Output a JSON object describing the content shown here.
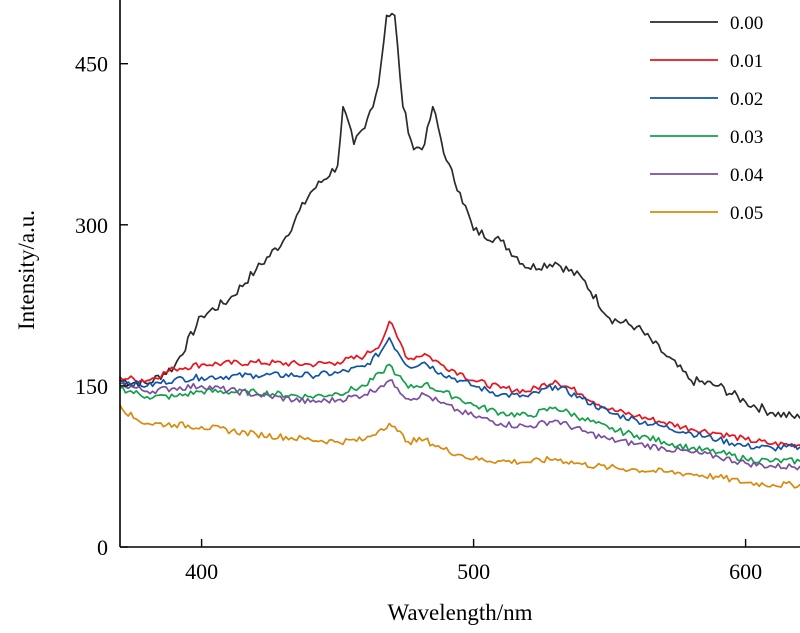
{
  "chart_data": {
    "type": "line",
    "title": "",
    "xlabel": "Wavelength/nm",
    "ylabel": "Intensity/a.u.",
    "xlim": [
      370,
      620
    ],
    "ylim": [
      0,
      500
    ],
    "x_ticks": [
      400,
      500,
      600
    ],
    "y_ticks": [
      0,
      150,
      300,
      450
    ],
    "grid": false,
    "legend_position": "top-right",
    "series": [
      {
        "name": "0.00",
        "color": "#2b2b2b",
        "points": [
          [
            370,
            155
          ],
          [
            380,
            152
          ],
          [
            390,
            168
          ],
          [
            400,
            215
          ],
          [
            410,
            230
          ],
          [
            420,
            258
          ],
          [
            430,
            285
          ],
          [
            440,
            330
          ],
          [
            450,
            355
          ],
          [
            452,
            410
          ],
          [
            456,
            375
          ],
          [
            460,
            390
          ],
          [
            465,
            430
          ],
          [
            468,
            495
          ],
          [
            471,
            495
          ],
          [
            474,
            410
          ],
          [
            478,
            370
          ],
          [
            482,
            375
          ],
          [
            485,
            410
          ],
          [
            490,
            360
          ],
          [
            495,
            330
          ],
          [
            500,
            295
          ],
          [
            510,
            285
          ],
          [
            520,
            260
          ],
          [
            530,
            265
          ],
          [
            540,
            250
          ],
          [
            550,
            213
          ],
          [
            560,
            205
          ],
          [
            570,
            180
          ],
          [
            580,
            155
          ],
          [
            590,
            150
          ],
          [
            600,
            135
          ],
          [
            610,
            125
          ],
          [
            620,
            120
          ]
        ]
      },
      {
        "name": "0.01",
        "color": "#e8131c",
        "points": [
          [
            370,
            158
          ],
          [
            380,
            155
          ],
          [
            390,
            166
          ],
          [
            400,
            170
          ],
          [
            420,
            172
          ],
          [
            440,
            170
          ],
          [
            450,
            172
          ],
          [
            460,
            178
          ],
          [
            466,
            190
          ],
          [
            469,
            210
          ],
          [
            472,
            195
          ],
          [
            476,
            175
          ],
          [
            482,
            180
          ],
          [
            488,
            170
          ],
          [
            495,
            162
          ],
          [
            500,
            155
          ],
          [
            510,
            148
          ],
          [
            520,
            145
          ],
          [
            530,
            155
          ],
          [
            540,
            142
          ],
          [
            550,
            128
          ],
          [
            560,
            122
          ],
          [
            570,
            116
          ],
          [
            580,
            110
          ],
          [
            590,
            106
          ],
          [
            600,
            100
          ],
          [
            610,
            96
          ],
          [
            620,
            95
          ]
        ]
      },
      {
        "name": "0.02",
        "color": "#1054a8",
        "points": [
          [
            370,
            155
          ],
          [
            380,
            150
          ],
          [
            390,
            156
          ],
          [
            400,
            158
          ],
          [
            420,
            160
          ],
          [
            440,
            160
          ],
          [
            450,
            162
          ],
          [
            460,
            168
          ],
          [
            466,
            182
          ],
          [
            469,
            195
          ],
          [
            472,
            182
          ],
          [
            476,
            168
          ],
          [
            482,
            172
          ],
          [
            488,
            162
          ],
          [
            495,
            155
          ],
          [
            500,
            150
          ],
          [
            510,
            142
          ],
          [
            520,
            140
          ],
          [
            530,
            150
          ],
          [
            540,
            138
          ],
          [
            550,
            125
          ],
          [
            560,
            118
          ],
          [
            570,
            112
          ],
          [
            580,
            106
          ],
          [
            590,
            100
          ],
          [
            600,
            94
          ],
          [
            610,
            92
          ],
          [
            620,
            93
          ]
        ]
      },
      {
        "name": "0.03",
        "color": "#14a04a",
        "points": [
          [
            370,
            148
          ],
          [
            380,
            140
          ],
          [
            390,
            140
          ],
          [
            400,
            145
          ],
          [
            420,
            144
          ],
          [
            440,
            140
          ],
          [
            450,
            143
          ],
          [
            460,
            150
          ],
          [
            466,
            162
          ],
          [
            469,
            170
          ],
          [
            472,
            160
          ],
          [
            476,
            148
          ],
          [
            482,
            152
          ],
          [
            488,
            145
          ],
          [
            495,
            138
          ],
          [
            500,
            132
          ],
          [
            510,
            125
          ],
          [
            520,
            122
          ],
          [
            530,
            130
          ],
          [
            540,
            120
          ],
          [
            550,
            110
          ],
          [
            560,
            104
          ],
          [
            570,
            98
          ],
          [
            580,
            92
          ],
          [
            590,
            88
          ],
          [
            600,
            82
          ],
          [
            610,
            80
          ],
          [
            620,
            80
          ]
        ]
      },
      {
        "name": "0.04",
        "color": "#7a4ea0",
        "points": [
          [
            370,
            152
          ],
          [
            380,
            145
          ],
          [
            390,
            148
          ],
          [
            400,
            150
          ],
          [
            420,
            142
          ],
          [
            440,
            135
          ],
          [
            450,
            137
          ],
          [
            460,
            142
          ],
          [
            466,
            150
          ],
          [
            469,
            155
          ],
          [
            472,
            148
          ],
          [
            476,
            138
          ],
          [
            482,
            142
          ],
          [
            488,
            134
          ],
          [
            495,
            126
          ],
          [
            500,
            122
          ],
          [
            510,
            115
          ],
          [
            520,
            112
          ],
          [
            530,
            118
          ],
          [
            540,
            108
          ],
          [
            550,
            100
          ],
          [
            560,
            96
          ],
          [
            570,
            92
          ],
          [
            580,
            88
          ],
          [
            590,
            84
          ],
          [
            600,
            78
          ],
          [
            610,
            75
          ],
          [
            620,
            75
          ]
        ]
      },
      {
        "name": "0.05",
        "color": "#d98a0e",
        "points": [
          [
            370,
            132
          ],
          [
            375,
            120
          ],
          [
            380,
            115
          ],
          [
            390,
            114
          ],
          [
            400,
            112
          ],
          [
            420,
            105
          ],
          [
            440,
            100
          ],
          [
            450,
            98
          ],
          [
            460,
            100
          ],
          [
            466,
            110
          ],
          [
            469,
            115
          ],
          [
            472,
            108
          ],
          [
            476,
            98
          ],
          [
            482,
            100
          ],
          [
            488,
            92
          ],
          [
            495,
            86
          ],
          [
            500,
            82
          ],
          [
            510,
            80
          ],
          [
            520,
            79
          ],
          [
            530,
            82
          ],
          [
            540,
            77
          ],
          [
            550,
            74
          ],
          [
            560,
            72
          ],
          [
            570,
            70
          ],
          [
            580,
            68
          ],
          [
            590,
            65
          ],
          [
            600,
            60
          ],
          [
            610,
            58
          ],
          [
            620,
            58
          ]
        ]
      }
    ]
  }
}
